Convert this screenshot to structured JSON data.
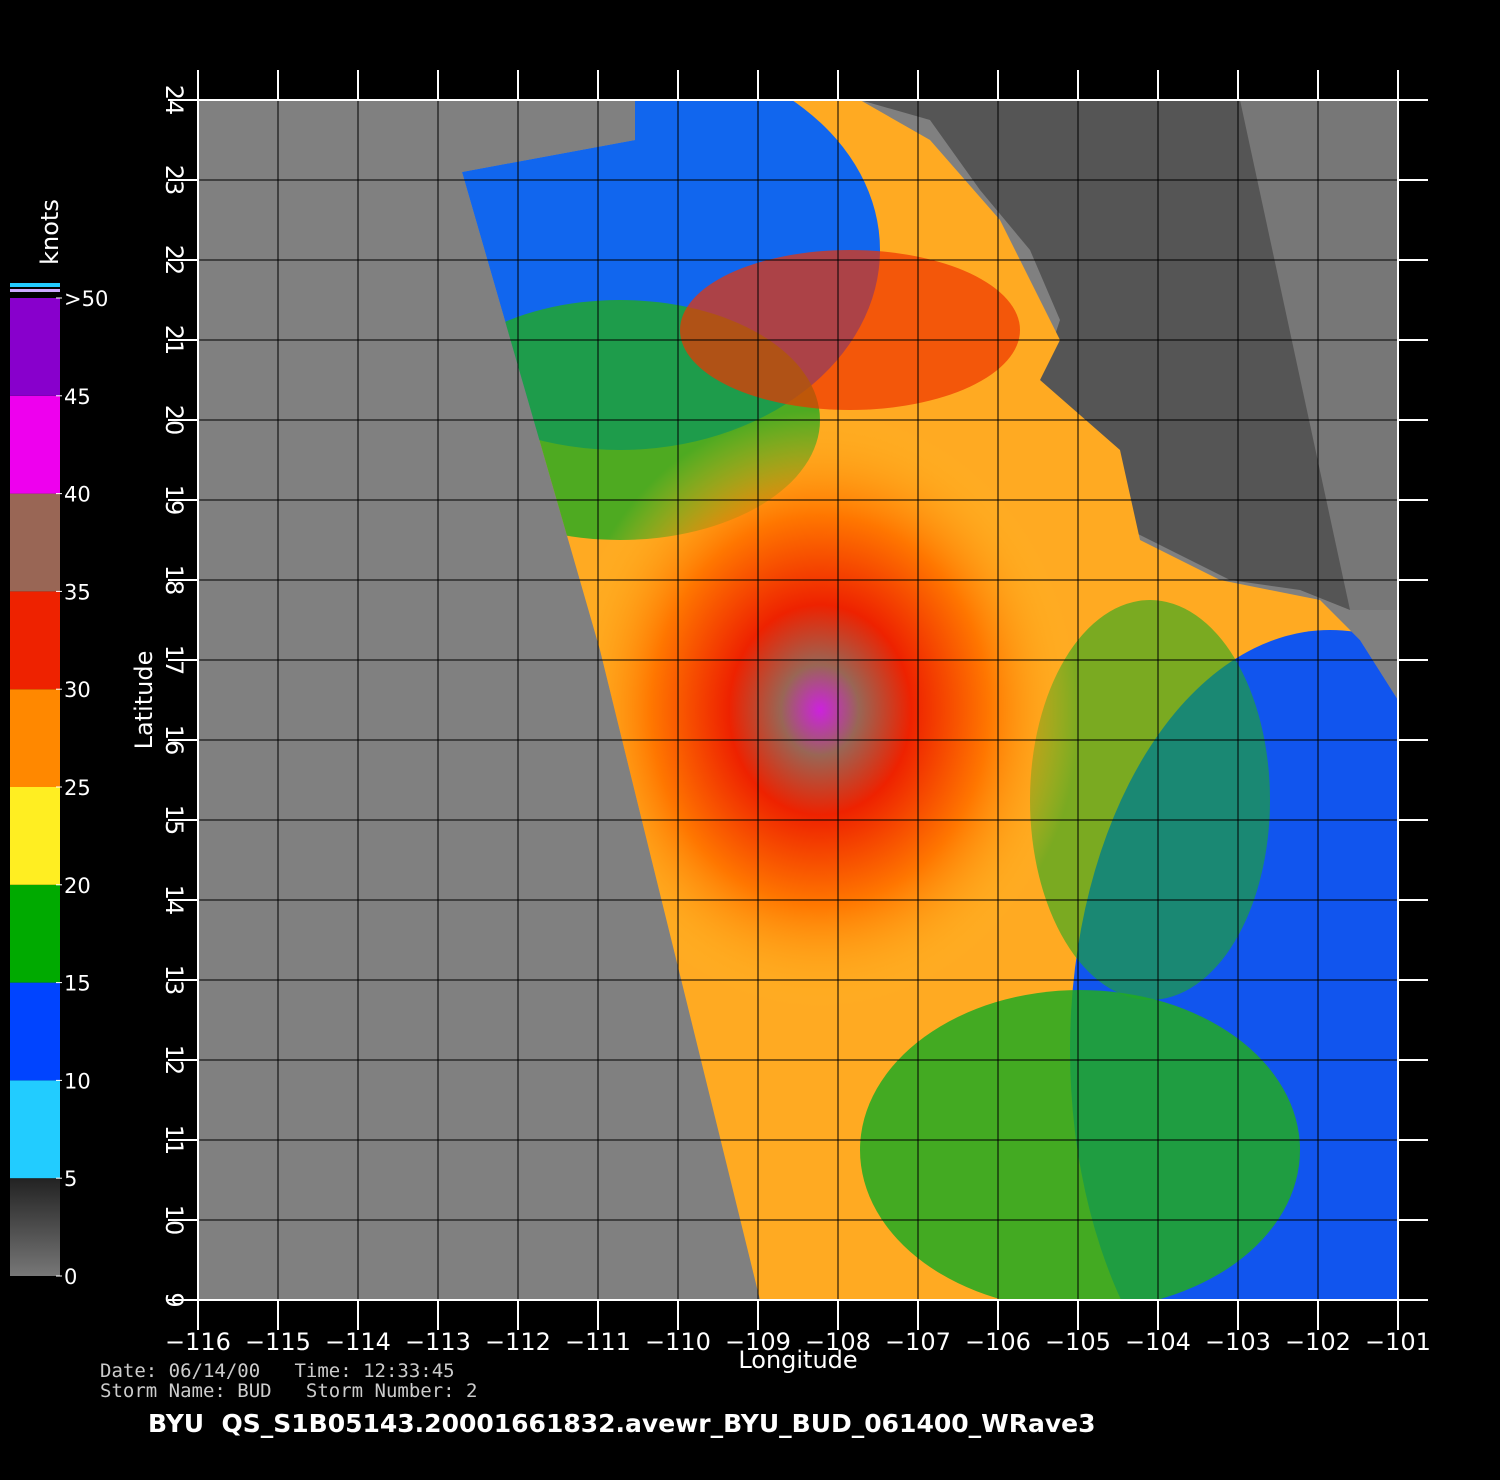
{
  "chart_data": {
    "type": "map",
    "xlabel": "Longitude",
    "ylabel": "Latitude",
    "xlim": [
      -116,
      -101
    ],
    "ylim": [
      9,
      24
    ],
    "xticks": [
      {
        "value": -116,
        "label": "−116"
      },
      {
        "value": -115,
        "label": "−115"
      },
      {
        "value": -114,
        "label": "−114"
      },
      {
        "value": -113,
        "label": "−113"
      },
      {
        "value": -112,
        "label": "−112"
      },
      {
        "value": -111,
        "label": "−111"
      },
      {
        "value": -110,
        "label": "−110"
      },
      {
        "value": -109,
        "label": "−109"
      },
      {
        "value": -108,
        "label": "−108"
      },
      {
        "value": -107,
        "label": "−107"
      },
      {
        "value": -106,
        "label": "−106"
      },
      {
        "value": -105,
        "label": "−105"
      },
      {
        "value": -104,
        "label": "−104"
      },
      {
        "value": -103,
        "label": "−103"
      },
      {
        "value": -102,
        "label": "−102"
      },
      {
        "value": -101,
        "label": "−101"
      }
    ],
    "yticks": [
      9,
      10,
      11,
      12,
      13,
      14,
      15,
      16,
      17,
      18,
      19,
      20,
      21,
      22,
      23,
      24
    ],
    "grid": true,
    "colorbar": {
      "title": "knots",
      "lim": [
        0,
        50
      ],
      "ticks": [
        0,
        5,
        10,
        15,
        20,
        25,
        30,
        35,
        40,
        45,
        {
          "value": 50,
          "label": ">50"
        }
      ],
      "colors": [
        "#777777",
        "#22ccff",
        "#0044ff",
        "#00aa00",
        "#ffee22",
        "#ff8800",
        "#ee2200",
        "#996655",
        "#ee00ee",
        "#8800cc"
      ]
    },
    "date_line": "Date: 06/14/00   Time: 12:33:45",
    "storm_line": "Storm Name: BUD   Storm Number: 2",
    "file_title": "BYU  QS_S1B05143.20001661832.avewr_BYU_BUD_061400_WRave3"
  }
}
